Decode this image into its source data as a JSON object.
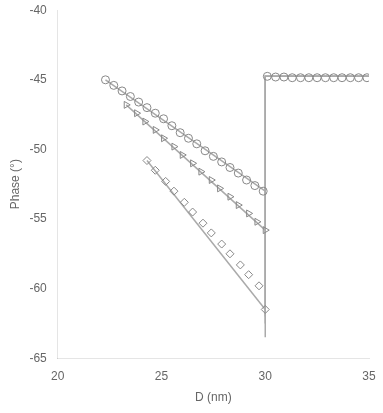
{
  "chart_data": {
    "type": "scatter",
    "xlabel": "D (nm)",
    "ylabel": "Phase (°)",
    "xlim": [
      20,
      35
    ],
    "ylim": [
      -65,
      -40
    ],
    "xticks": [
      20,
      25,
      30,
      35
    ],
    "yticks": [
      -65,
      -60,
      -55,
      -50,
      -45,
      -40
    ],
    "grid": false,
    "series": [
      {
        "type": "line",
        "line_style": "solid",
        "marker": "none",
        "color": "#aaaaaa",
        "x": [
          22.3,
          30.0
        ],
        "values": [
          -45.0,
          -53.0
        ]
      },
      {
        "type": "line",
        "line_style": "solid",
        "marker": "none",
        "color": "#aaaaaa",
        "x": [
          30.0,
          30.0,
          35.0
        ],
        "values": [
          -62.0,
          -44.75,
          -44.75
        ]
      },
      {
        "type": "line",
        "line_style": "solid",
        "marker": "none",
        "color": "#aaaaaa",
        "x": [
          23.3,
          30.0
        ],
        "values": [
          -46.8,
          -55.8
        ]
      },
      {
        "type": "line",
        "line_style": "solid",
        "marker": "none",
        "color": "#aaaaaa",
        "x": [
          30.0,
          30.0,
          35.0
        ],
        "values": [
          -62.5,
          -44.75,
          -44.75
        ]
      },
      {
        "type": "line",
        "line_style": "solid",
        "marker": "none",
        "color": "#aaaaaa",
        "x": [
          24.3,
          30.0
        ],
        "values": [
          -50.8,
          -61.5
        ]
      },
      {
        "type": "line",
        "line_style": "solid",
        "marker": "none",
        "color": "#aaaaaa",
        "x": [
          30.0,
          30.0,
          35.0
        ],
        "values": [
          -63.5,
          -44.75,
          -44.75
        ]
      },
      {
        "type": "scatter",
        "marker": "circle",
        "color": "#888888",
        "x": [
          22.3,
          22.7,
          23.1,
          23.5,
          23.9,
          24.3,
          24.7,
          25.1,
          25.5,
          25.9,
          26.3,
          26.7,
          27.1,
          27.5,
          27.9,
          28.3,
          28.7,
          29.1,
          29.5,
          29.9
        ],
        "values": [
          -45.0,
          -45.4,
          -45.8,
          -46.2,
          -46.6,
          -47.0,
          -47.4,
          -47.8,
          -48.3,
          -48.8,
          -49.2,
          -49.6,
          -50.1,
          -50.5,
          -50.9,
          -51.3,
          -51.7,
          -52.2,
          -52.6,
          -53.0
        ]
      },
      {
        "type": "scatter",
        "marker": "circle",
        "color": "#888888",
        "x": [
          30.1,
          30.5,
          30.9,
          31.3,
          31.7,
          32.1,
          32.5,
          32.9,
          33.3,
          33.7,
          34.1,
          34.5,
          34.9
        ],
        "values": [
          -44.75,
          -44.8,
          -44.8,
          -44.85,
          -44.85,
          -44.85,
          -44.85,
          -44.85,
          -44.85,
          -44.85,
          -44.85,
          -44.85,
          -44.85
        ]
      },
      {
        "type": "scatter",
        "marker": "triangle_right",
        "color": "#888888",
        "x": [
          23.3,
          23.8,
          24.2,
          24.7,
          25.1,
          25.6,
          26.0,
          26.5,
          26.9,
          27.4,
          27.8,
          28.3,
          28.7,
          29.2,
          29.6,
          30.0
        ],
        "values": [
          -46.8,
          -47.4,
          -48.0,
          -48.6,
          -49.2,
          -49.8,
          -50.4,
          -51.0,
          -51.6,
          -52.2,
          -52.8,
          -53.4,
          -54.0,
          -54.6,
          -55.2,
          -55.8
        ]
      },
      {
        "type": "scatter",
        "marker": "diamond",
        "color": "#888888",
        "x": [
          24.3,
          24.7,
          25.2,
          25.6,
          26.1,
          26.5,
          27.0,
          27.4,
          27.9,
          28.3,
          28.8,
          29.2,
          29.7,
          30.0
        ],
        "values": [
          -50.8,
          -51.5,
          -52.3,
          -53.0,
          -53.8,
          -54.5,
          -55.3,
          -56.0,
          -56.8,
          -57.5,
          -58.3,
          -59.0,
          -59.8,
          -61.5
        ]
      }
    ]
  }
}
